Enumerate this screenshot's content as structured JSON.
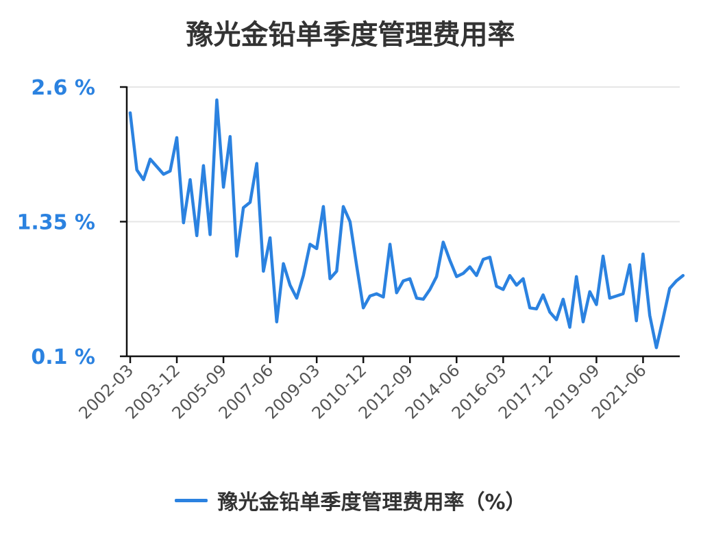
{
  "chart_data": {
    "type": "line",
    "title": "豫光金铅单季度管理费用率",
    "xlabel": "",
    "ylabel": "",
    "ylim": [
      0.1,
      2.6
    ],
    "yticks": [
      {
        "value": 0.1,
        "label": "0.1 %"
      },
      {
        "value": 1.35,
        "label": "1.35 %"
      },
      {
        "value": 2.6,
        "label": "2.6 %"
      }
    ],
    "xtick_labels": [
      "2002-03",
      "2003-12",
      "2005-09",
      "2007-06",
      "2009-03",
      "2010-12",
      "2012-09",
      "2014-06",
      "2016-03",
      "2017-12",
      "2019-09",
      "2021-06"
    ],
    "grid": true,
    "legend_position": "bottom",
    "series": [
      {
        "name": "豫光金铅单季度管理费用率（%）",
        "color": "#2b82e0",
        "x": [
          "2002-03",
          "2002-06",
          "2002-09",
          "2002-12",
          "2003-03",
          "2003-06",
          "2003-09",
          "2003-12",
          "2004-03",
          "2004-06",
          "2004-09",
          "2004-12",
          "2005-03",
          "2005-06",
          "2005-09",
          "2005-12",
          "2006-03",
          "2006-06",
          "2006-09",
          "2006-12",
          "2007-03",
          "2007-06",
          "2007-09",
          "2007-12",
          "2008-03",
          "2008-06",
          "2008-09",
          "2008-12",
          "2009-03",
          "2009-06",
          "2009-09",
          "2009-12",
          "2010-03",
          "2010-06",
          "2010-09",
          "2010-12",
          "2011-03",
          "2011-06",
          "2011-09",
          "2011-12",
          "2012-03",
          "2012-06",
          "2012-09",
          "2012-12",
          "2013-03",
          "2013-06",
          "2013-09",
          "2013-12",
          "2014-03",
          "2014-06",
          "2014-09",
          "2014-12",
          "2015-03",
          "2015-06",
          "2015-09",
          "2015-12",
          "2016-03",
          "2016-06",
          "2016-09",
          "2016-12",
          "2017-03",
          "2017-06",
          "2017-09",
          "2017-12",
          "2018-03",
          "2018-06",
          "2018-09",
          "2018-12",
          "2019-03",
          "2019-06",
          "2019-09",
          "2019-12",
          "2020-03",
          "2020-06",
          "2020-09",
          "2020-12",
          "2021-03",
          "2021-06",
          "2021-09",
          "2021-12",
          "2022-03",
          "2022-06",
          "2022-09",
          "2022-12"
        ],
        "values": [
          2.36,
          1.83,
          1.74,
          1.93,
          1.86,
          1.79,
          1.82,
          2.13,
          1.34,
          1.74,
          1.22,
          1.87,
          1.23,
          2.48,
          1.67,
          2.14,
          1.03,
          1.48,
          1.53,
          1.89,
          0.89,
          1.2,
          0.42,
          0.96,
          0.76,
          0.64,
          0.85,
          1.14,
          1.1,
          1.49,
          0.82,
          0.89,
          1.49,
          1.35,
          0.94,
          0.55,
          0.66,
          0.68,
          0.65,
          1.14,
          0.69,
          0.8,
          0.82,
          0.64,
          0.63,
          0.72,
          0.84,
          1.16,
          0.99,
          0.84,
          0.87,
          0.93,
          0.85,
          1.0,
          1.02,
          0.75,
          0.72,
          0.85,
          0.76,
          0.82,
          0.55,
          0.54,
          0.67,
          0.51,
          0.44,
          0.63,
          0.37,
          0.84,
          0.42,
          0.7,
          0.58,
          1.03,
          0.64,
          0.66,
          0.68,
          0.95,
          0.43,
          1.05,
          0.48,
          0.18,
          0.45,
          0.73,
          0.8,
          0.85
        ]
      }
    ]
  }
}
